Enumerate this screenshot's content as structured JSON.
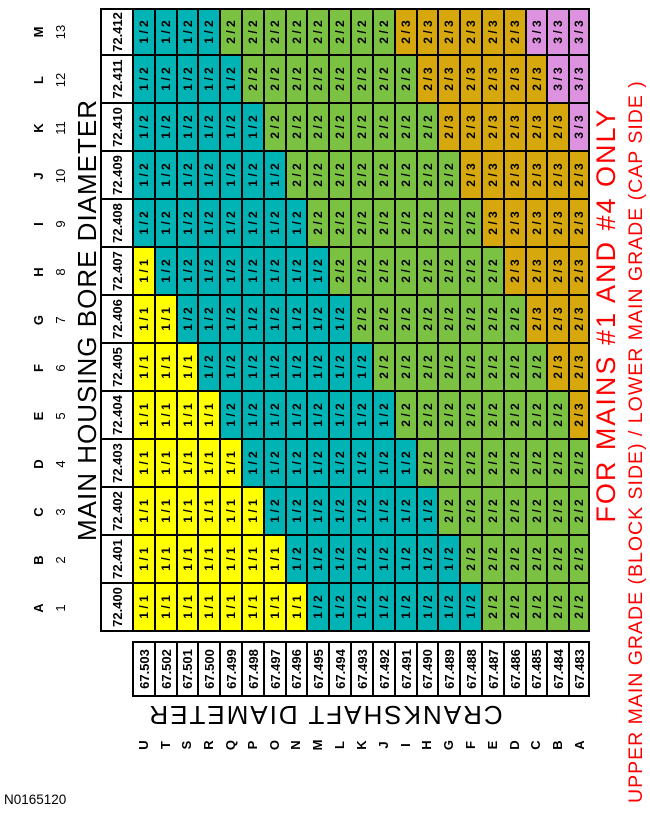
{
  "document_number": "N0165120",
  "notes": {
    "line1": "FOR MAINS #1 AND #4 ONLY",
    "line2": "UPPER MAIN GRADE (BLOCK SIDE) / LOWER MAIN GRADE (CAP SIDE )",
    "color": "#FF0000"
  },
  "chart_data": {
    "type": "heatmap",
    "title": "MAIN HOUSING BORE DIAMETER",
    "row_axis_label": "CRANKSHAFT DIAMETER",
    "orientation": "whole chart rotated 90 degrees counter-clockwise in screenshot",
    "col_letters": [
      "A",
      "B",
      "C",
      "D",
      "E",
      "F",
      "G",
      "H",
      "I",
      "J",
      "K",
      "L",
      "M"
    ],
    "col_numbers": [
      "1",
      "2",
      "3",
      "4",
      "5",
      "6",
      "7",
      "8",
      "9",
      "10",
      "11",
      "12",
      "13"
    ],
    "col_values": [
      "72.400",
      "72.401",
      "72.402",
      "72.403",
      "72.404",
      "72.405",
      "72.406",
      "72.407",
      "72.408",
      "72.409",
      "72.410",
      "72.411",
      "72.412"
    ],
    "row_letters": [
      "U",
      "T",
      "S",
      "R",
      "Q",
      "P",
      "O",
      "N",
      "M",
      "L",
      "K",
      "J",
      "I",
      "H",
      "G",
      "F",
      "E",
      "D",
      "C",
      "B",
      "A"
    ],
    "row_values": [
      "67.503",
      "67.502",
      "67.501",
      "67.500",
      "67.499",
      "67.498",
      "67.497",
      "67.496",
      "67.495",
      "67.494",
      "67.493",
      "67.492",
      "67.491",
      "67.490",
      "67.489",
      "67.488",
      "67.487",
      "67.486",
      "67.485",
      "67.484",
      "67.483"
    ],
    "cell_colors": {
      "1 / 1": "#FFFF00",
      "1 / 2": "#00B3B5",
      "2 / 2": "#7CC242",
      "2 / 3": "#D6A80E",
      "3 / 3": "#DD92DF"
    },
    "cells": [
      [
        "1 / 1",
        "1 / 1",
        "1 / 1",
        "1 / 1",
        "1 / 1",
        "1 / 1",
        "1 / 1",
        "1 / 1",
        "1 / 2",
        "1 / 2",
        "1 / 2",
        "1 / 2",
        "1 / 2"
      ],
      [
        "1 / 1",
        "1 / 1",
        "1 / 1",
        "1 / 1",
        "1 / 1",
        "1 / 1",
        "1 / 1",
        "1 / 2",
        "1 / 2",
        "1 / 2",
        "1 / 2",
        "1 / 2",
        "1 / 2"
      ],
      [
        "1 / 1",
        "1 / 1",
        "1 / 1",
        "1 / 1",
        "1 / 1",
        "1 / 1",
        "1 / 2",
        "1 / 2",
        "1 / 2",
        "1 / 2",
        "1 / 2",
        "1 / 2",
        "1 / 2"
      ],
      [
        "1 / 1",
        "1 / 1",
        "1 / 1",
        "1 / 1",
        "1 / 1",
        "1 / 2",
        "1 / 2",
        "1 / 2",
        "1 / 2",
        "1 / 2",
        "1 / 2",
        "1 / 2",
        "1 / 2"
      ],
      [
        "1 / 1",
        "1 / 1",
        "1 / 1",
        "1 / 1",
        "1 / 2",
        "1 / 2",
        "1 / 2",
        "1 / 2",
        "1 / 2",
        "1 / 2",
        "1 / 2",
        "1 / 2",
        "2 / 2"
      ],
      [
        "1 / 1",
        "1 / 1",
        "1 / 1",
        "1 / 2",
        "1 / 2",
        "1 / 2",
        "1 / 2",
        "1 / 2",
        "1 / 2",
        "1 / 2",
        "1 / 2",
        "2 / 2",
        "2 / 2"
      ],
      [
        "1 / 1",
        "1 / 1",
        "1 / 2",
        "1 / 2",
        "1 / 2",
        "1 / 2",
        "1 / 2",
        "1 / 2",
        "1 / 2",
        "1 / 2",
        "2 / 2",
        "2 / 2",
        "2 / 2"
      ],
      [
        "1 / 1",
        "1 / 2",
        "1 / 2",
        "1 / 2",
        "1 / 2",
        "1 / 2",
        "1 / 2",
        "1 / 2",
        "1 / 2",
        "2 / 2",
        "2 / 2",
        "2 / 2",
        "2 / 2"
      ],
      [
        "1 / 2",
        "1 / 2",
        "1 / 2",
        "1 / 2",
        "1 / 2",
        "1 / 2",
        "1 / 2",
        "1 / 2",
        "2 / 2",
        "2 / 2",
        "2 / 2",
        "2 / 2",
        "2 / 2"
      ],
      [
        "1 / 2",
        "1 / 2",
        "1 / 2",
        "1 / 2",
        "1 / 2",
        "1 / 2",
        "1 / 2",
        "2 / 2",
        "2 / 2",
        "2 / 2",
        "2 / 2",
        "2 / 2",
        "2 / 2"
      ],
      [
        "1 / 2",
        "1 / 2",
        "1 / 2",
        "1 / 2",
        "1 / 2",
        "1 / 2",
        "2 / 2",
        "2 / 2",
        "2 / 2",
        "2 / 2",
        "2 / 2",
        "2 / 2",
        "2 / 2"
      ],
      [
        "1 / 2",
        "1 / 2",
        "1 / 2",
        "1 / 2",
        "1 / 2",
        "2 / 2",
        "2 / 2",
        "2 / 2",
        "2 / 2",
        "2 / 2",
        "2 / 2",
        "2 / 2",
        "2 / 2"
      ],
      [
        "1 / 2",
        "1 / 2",
        "1 / 2",
        "1 / 2",
        "2 / 2",
        "2 / 2",
        "2 / 2",
        "2 / 2",
        "2 / 2",
        "2 / 2",
        "2 / 2",
        "2 / 2",
        "2 / 3"
      ],
      [
        "1 / 2",
        "1 / 2",
        "1 / 2",
        "2 / 2",
        "2 / 2",
        "2 / 2",
        "2 / 2",
        "2 / 2",
        "2 / 2",
        "2 / 2",
        "2 / 2",
        "2 / 3",
        "2 / 3"
      ],
      [
        "1 / 2",
        "1 / 2",
        "2 / 2",
        "2 / 2",
        "2 / 2",
        "2 / 2",
        "2 / 2",
        "2 / 2",
        "2 / 2",
        "2 / 2",
        "2 / 3",
        "2 / 3",
        "2 / 3"
      ],
      [
        "1 / 2",
        "2 / 2",
        "2 / 2",
        "2 / 2",
        "2 / 2",
        "2 / 2",
        "2 / 2",
        "2 / 2",
        "2 / 2",
        "2 / 3",
        "2 / 3",
        "2 / 3",
        "2 / 3"
      ],
      [
        "2 / 2",
        "2 / 2",
        "2 / 2",
        "2 / 2",
        "2 / 2",
        "2 / 2",
        "2 / 2",
        "2 / 2",
        "2 / 3",
        "2 / 3",
        "2 / 3",
        "2 / 3",
        "2 / 3"
      ],
      [
        "2 / 2",
        "2 / 2",
        "2 / 2",
        "2 / 2",
        "2 / 2",
        "2 / 2",
        "2 / 2",
        "2 / 3",
        "2 / 3",
        "2 / 3",
        "2 / 3",
        "2 / 3",
        "2 / 3"
      ],
      [
        "2 / 2",
        "2 / 2",
        "2 / 2",
        "2 / 2",
        "2 / 2",
        "2 / 2",
        "2 / 3",
        "2 / 3",
        "2 / 3",
        "2 / 3",
        "2 / 3",
        "2 / 3",
        "3 / 3"
      ],
      [
        "2 / 2",
        "2 / 2",
        "2 / 2",
        "2 / 2",
        "2 / 2",
        "2 / 3",
        "2 / 3",
        "2 / 3",
        "2 / 3",
        "2 / 3",
        "2 / 3",
        "3 / 3",
        "3 / 3"
      ],
      [
        "2 / 2",
        "2 / 2",
        "2 / 2",
        "2 / 2",
        "2 / 3",
        "2 / 3",
        "2 / 3",
        "2 / 3",
        "2 / 3",
        "2 / 3",
        "3 / 3",
        "3 / 3",
        "3 / 3"
      ]
    ]
  }
}
